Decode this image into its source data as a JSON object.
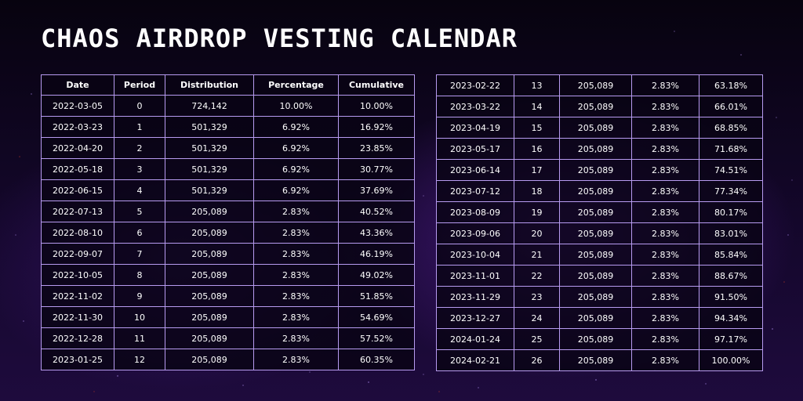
{
  "title": "Chaos Airdrop Vesting Calendar",
  "colors": {
    "background": "#14072b",
    "grid_line": "#b79bf0",
    "text": "#ffffff"
  },
  "table": {
    "headers": [
      "Date",
      "Period",
      "Distribution",
      "Percentage",
      "Cumulative"
    ],
    "rows_left": [
      [
        "2022-03-05",
        "0",
        "724,142",
        "10.00%",
        "10.00%"
      ],
      [
        "2022-03-23",
        "1",
        "501,329",
        "6.92%",
        "16.92%"
      ],
      [
        "2022-04-20",
        "2",
        "501,329",
        "6.92%",
        "23.85%"
      ],
      [
        "2022-05-18",
        "3",
        "501,329",
        "6.92%",
        "30.77%"
      ],
      [
        "2022-06-15",
        "4",
        "501,329",
        "6.92%",
        "37.69%"
      ],
      [
        "2022-07-13",
        "5",
        "205,089",
        "2.83%",
        "40.52%"
      ],
      [
        "2022-08-10",
        "6",
        "205,089",
        "2.83%",
        "43.36%"
      ],
      [
        "2022-09-07",
        "7",
        "205,089",
        "2.83%",
        "46.19%"
      ],
      [
        "2022-10-05",
        "8",
        "205,089",
        "2.83%",
        "49.02%"
      ],
      [
        "2022-11-02",
        "9",
        "205,089",
        "2.83%",
        "51.85%"
      ],
      [
        "2022-11-30",
        "10",
        "205,089",
        "2.83%",
        "54.69%"
      ],
      [
        "2022-12-28",
        "11",
        "205,089",
        "2.83%",
        "57.52%"
      ],
      [
        "2023-01-25",
        "12",
        "205,089",
        "2.83%",
        "60.35%"
      ]
    ],
    "rows_right": [
      [
        "2023-02-22",
        "13",
        "205,089",
        "2.83%",
        "63.18%"
      ],
      [
        "2023-03-22",
        "14",
        "205,089",
        "2.83%",
        "66.01%"
      ],
      [
        "2023-04-19",
        "15",
        "205,089",
        "2.83%",
        "68.85%"
      ],
      [
        "2023-05-17",
        "16",
        "205,089",
        "2.83%",
        "71.68%"
      ],
      [
        "2023-06-14",
        "17",
        "205,089",
        "2.83%",
        "74.51%"
      ],
      [
        "2023-07-12",
        "18",
        "205,089",
        "2.83%",
        "77.34%"
      ],
      [
        "2023-08-09",
        "19",
        "205,089",
        "2.83%",
        "80.17%"
      ],
      [
        "2023-09-06",
        "20",
        "205,089",
        "2.83%",
        "83.01%"
      ],
      [
        "2023-10-04",
        "21",
        "205,089",
        "2.83%",
        "85.84%"
      ],
      [
        "2023-11-01",
        "22",
        "205,089",
        "2.83%",
        "88.67%"
      ],
      [
        "2023-11-29",
        "23",
        "205,089",
        "2.83%",
        "91.50%"
      ],
      [
        "2023-12-27",
        "24",
        "205,089",
        "2.83%",
        "94.34%"
      ],
      [
        "2024-01-24",
        "25",
        "205,089",
        "2.83%",
        "97.17%"
      ],
      [
        "2024-02-21",
        "26",
        "205,089",
        "2.83%",
        "100.00%"
      ]
    ]
  }
}
